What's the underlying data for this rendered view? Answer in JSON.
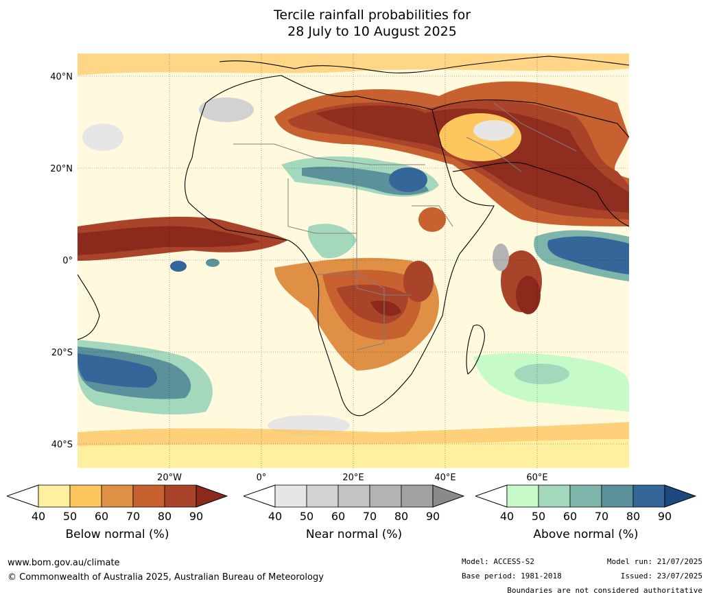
{
  "title": {
    "line1": "Tercile rainfall probabilities for",
    "line2": "28 July to 10 August 2025"
  },
  "map": {
    "lat_labels": [
      "40°N",
      "20°N",
      "0°",
      "20°S",
      "40°S"
    ],
    "lon_labels": [
      "20°W",
      "0°",
      "20°E",
      "40°E",
      "60°E"
    ],
    "grid": "dotted"
  },
  "legends": [
    {
      "name": "below",
      "title": "Below normal (%)",
      "ticks": [
        "40",
        "50",
        "60",
        "70",
        "80",
        "90"
      ],
      "colors": [
        "#fff0a0",
        "#fdc65f",
        "#e09044",
        "#c86130",
        "#a9432a",
        "#8b2a1c"
      ]
    },
    {
      "name": "near",
      "title": "Near normal (%)",
      "ticks": [
        "40",
        "50",
        "60",
        "70",
        "80",
        "90"
      ],
      "colors": [
        "#e6e6e6",
        "#d2d2d2",
        "#c3c3c3",
        "#b3b3b3",
        "#a2a2a2",
        "#8a8a8a"
      ]
    },
    {
      "name": "above",
      "title": "Above normal (%)",
      "ticks": [
        "40",
        "50",
        "60",
        "70",
        "80",
        "90"
      ],
      "colors": [
        "#c7fac9",
        "#a4d8bc",
        "#7eb5aa",
        "#5b919b",
        "#34669a",
        "#1a4a80"
      ]
    }
  ],
  "footer": {
    "url": "www.bom.gov.au/climate",
    "copyright": "© Commonwealth of Australia 2025, Australian Bureau of Meteorology",
    "model": "Model: ACCESS-S2",
    "base_period": "Base period: 1981-2018",
    "model_run": "Model run: 21/07/2025",
    "issued": "Issued: 23/07/2025",
    "disclaimer": "Boundaries are not considered authoritative"
  }
}
